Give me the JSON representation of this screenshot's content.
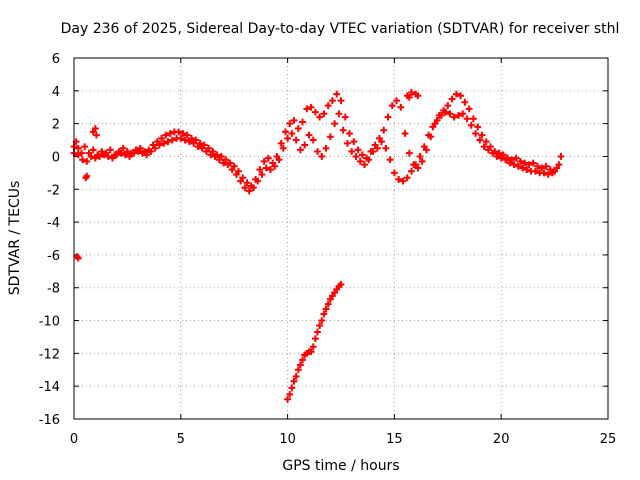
{
  "chart_data": {
    "type": "scatter",
    "title": "Day 236 of 2025, Sidereal Day-to-day VTEC variation (SDTVAR) for receiver sthl",
    "xlabel": "GPS time / hours",
    "ylabel": "SDTVAR / TECUs",
    "xlim": [
      0,
      25
    ],
    "ylim": [
      -16,
      6
    ],
    "xticks": [
      "0",
      "5",
      "10",
      "15",
      "20",
      "25"
    ],
    "yticks": [
      "-16",
      "-14",
      "-12",
      "-10",
      "-8",
      "-6",
      "-4",
      "-2",
      "0",
      "2",
      "4",
      "6"
    ],
    "grid": true,
    "marker": "+",
    "color": "#ff0000",
    "series": [
      {
        "name": "main-trace-a",
        "points": [
          [
            0.0,
            0.6
          ],
          [
            0.1,
            0.9
          ],
          [
            0.2,
            0.5
          ],
          [
            0.35,
            0.2
          ],
          [
            0.5,
            0.6
          ],
          [
            0.7,
            0.2
          ],
          [
            0.9,
            0.4
          ],
          [
            1.1,
            0.1
          ],
          [
            1.3,
            0.3
          ],
          [
            1.5,
            0.2
          ],
          [
            1.7,
            0.4
          ],
          [
            1.9,
            0.1
          ],
          [
            2.1,
            0.3
          ],
          [
            2.3,
            0.5
          ],
          [
            2.5,
            0.3
          ],
          [
            2.7,
            0.2
          ],
          [
            2.9,
            0.4
          ],
          [
            3.1,
            0.5
          ],
          [
            3.3,
            0.3
          ],
          [
            3.5,
            0.4
          ],
          [
            3.7,
            0.7
          ],
          [
            3.9,
            0.9
          ],
          [
            4.1,
            1.1
          ],
          [
            4.3,
            1.3
          ],
          [
            4.5,
            1.4
          ],
          [
            4.7,
            1.5
          ],
          [
            4.9,
            1.5
          ],
          [
            5.1,
            1.4
          ],
          [
            5.3,
            1.3
          ],
          [
            5.5,
            1.1
          ],
          [
            5.7,
            1.0
          ],
          [
            5.9,
            0.8
          ],
          [
            6.1,
            0.7
          ],
          [
            6.3,
            0.5
          ],
          [
            6.5,
            0.3
          ],
          [
            6.7,
            0.1
          ],
          [
            6.9,
            0.0
          ],
          [
            7.1,
            -0.2
          ],
          [
            7.3,
            -0.4
          ],
          [
            7.5,
            -0.6
          ],
          [
            7.7,
            -0.9
          ],
          [
            7.9,
            -1.3
          ],
          [
            8.1,
            -1.6
          ],
          [
            8.3,
            -1.8
          ],
          [
            8.5,
            -1.4
          ],
          [
            8.7,
            -0.8
          ],
          [
            8.9,
            -0.3
          ],
          [
            9.1,
            -0.1
          ],
          [
            9.3,
            -0.4
          ],
          [
            9.5,
            0.0
          ],
          [
            9.7,
            0.8
          ],
          [
            9.9,
            1.5
          ],
          [
            10.1,
            2.0
          ],
          [
            10.3,
            2.2
          ],
          [
            10.5,
            1.7
          ],
          [
            10.7,
            2.1
          ],
          [
            10.9,
            2.9
          ],
          [
            11.1,
            3.0
          ],
          [
            11.3,
            2.7
          ],
          [
            11.5,
            2.4
          ],
          [
            11.7,
            2.6
          ],
          [
            11.9,
            3.1
          ],
          [
            12.1,
            3.4
          ],
          [
            12.3,
            3.8
          ],
          [
            12.5,
            3.4
          ],
          [
            12.7,
            2.4
          ],
          [
            12.9,
            1.4
          ],
          [
            13.1,
            0.9
          ],
          [
            13.3,
            0.4
          ],
          [
            13.5,
            0.1
          ],
          [
            13.7,
            -0.1
          ],
          [
            13.9,
            0.3
          ],
          [
            14.1,
            0.7
          ],
          [
            14.3,
            1.1
          ],
          [
            14.5,
            1.6
          ],
          [
            14.7,
            2.4
          ],
          [
            14.9,
            3.1
          ],
          [
            15.1,
            3.4
          ],
          [
            15.3,
            3.0
          ],
          [
            15.5,
            1.4
          ],
          [
            15.7,
            0.2
          ],
          [
            15.9,
            -0.5
          ],
          [
            16.1,
            -0.7
          ],
          [
            16.3,
            -0.3
          ],
          [
            16.5,
            0.4
          ],
          [
            16.7,
            1.2
          ],
          [
            16.9,
            2.0
          ],
          [
            17.1,
            2.5
          ],
          [
            17.3,
            2.8
          ],
          [
            17.5,
            3.1
          ],
          [
            17.7,
            3.5
          ],
          [
            17.9,
            3.8
          ],
          [
            18.1,
            3.7
          ],
          [
            18.3,
            3.3
          ],
          [
            18.5,
            2.9
          ],
          [
            18.7,
            2.3
          ],
          [
            18.9,
            1.8
          ],
          [
            19.1,
            1.3
          ],
          [
            19.3,
            0.9
          ],
          [
            19.5,
            0.6
          ],
          [
            19.7,
            0.3
          ],
          [
            19.9,
            0.2
          ],
          [
            20.1,
            0.1
          ],
          [
            20.3,
            -0.1
          ],
          [
            20.5,
            -0.2
          ],
          [
            20.7,
            -0.1
          ],
          [
            20.9,
            -0.3
          ],
          [
            21.1,
            -0.4
          ],
          [
            21.3,
            -0.5
          ],
          [
            21.5,
            -0.4
          ],
          [
            21.7,
            -0.6
          ],
          [
            21.9,
            -0.7
          ],
          [
            22.1,
            -0.6
          ],
          [
            22.3,
            -0.8
          ],
          [
            22.5,
            -0.9
          ],
          [
            22.7,
            -0.5
          ],
          [
            22.8,
            0.0
          ]
        ]
      },
      {
        "name": "main-trace-b",
        "points": [
          [
            0.0,
            0.2
          ],
          [
            0.2,
            0.1
          ],
          [
            0.4,
            -0.2
          ],
          [
            0.6,
            -0.3
          ],
          [
            0.8,
            0.0
          ],
          [
            1.0,
            -0.1
          ],
          [
            1.2,
            0.0
          ],
          [
            1.4,
            0.1
          ],
          [
            1.6,
            0.0
          ],
          [
            1.8,
            -0.1
          ],
          [
            2.0,
            0.1
          ],
          [
            2.2,
            0.2
          ],
          [
            2.4,
            0.1
          ],
          [
            2.6,
            0.0
          ],
          [
            2.8,
            0.2
          ],
          [
            3.0,
            0.3
          ],
          [
            3.2,
            0.2
          ],
          [
            3.4,
            0.1
          ],
          [
            3.6,
            0.3
          ],
          [
            3.8,
            0.5
          ],
          [
            4.0,
            0.7
          ],
          [
            4.2,
            0.8
          ],
          [
            4.4,
            0.9
          ],
          [
            4.6,
            1.0
          ],
          [
            4.8,
            1.1
          ],
          [
            5.0,
            1.1
          ],
          [
            5.2,
            1.0
          ],
          [
            5.4,
            0.9
          ],
          [
            5.6,
            0.8
          ],
          [
            5.8,
            0.6
          ],
          [
            6.0,
            0.5
          ],
          [
            6.2,
            0.3
          ],
          [
            6.4,
            0.1
          ],
          [
            6.6,
            0.0
          ],
          [
            6.8,
            -0.2
          ],
          [
            7.0,
            -0.4
          ],
          [
            7.2,
            -0.5
          ],
          [
            7.4,
            -0.8
          ],
          [
            7.6,
            -1.1
          ],
          [
            7.8,
            -1.5
          ],
          [
            8.0,
            -1.9
          ],
          [
            8.2,
            -2.1
          ],
          [
            8.4,
            -1.9
          ],
          [
            8.6,
            -1.5
          ],
          [
            8.8,
            -1.1
          ],
          [
            9.0,
            -0.7
          ],
          [
            9.2,
            -0.8
          ],
          [
            9.4,
            -0.6
          ],
          [
            9.6,
            -0.2
          ],
          [
            9.8,
            0.5
          ],
          [
            10.0,
            1.1
          ],
          [
            10.2,
            1.4
          ],
          [
            10.4,
            1.0
          ],
          [
            10.6,
            0.4
          ],
          [
            10.8,
            0.7
          ],
          [
            11.0,
            1.3
          ],
          [
            11.2,
            1.0
          ],
          [
            11.4,
            0.3
          ],
          [
            11.6,
            0.0
          ],
          [
            11.8,
            0.5
          ],
          [
            12.0,
            1.2
          ],
          [
            12.2,
            2.0
          ],
          [
            12.4,
            2.6
          ],
          [
            12.6,
            1.6
          ],
          [
            12.8,
            0.8
          ],
          [
            13.0,
            0.3
          ],
          [
            13.2,
            0.0
          ],
          [
            13.4,
            -0.3
          ],
          [
            13.6,
            -0.5
          ],
          [
            13.8,
            -0.2
          ],
          [
            14.0,
            0.3
          ],
          [
            14.2,
            0.5
          ],
          [
            14.4,
            0.9
          ],
          [
            14.6,
            0.5
          ],
          [
            14.8,
            -0.2
          ],
          [
            15.0,
            -1.0
          ],
          [
            15.2,
            -1.4
          ],
          [
            15.4,
            -1.5
          ],
          [
            15.6,
            -1.3
          ],
          [
            15.8,
            -0.9
          ],
          [
            16.0,
            -0.5
          ],
          [
            16.2,
            0.0
          ],
          [
            16.4,
            0.6
          ],
          [
            16.6,
            1.3
          ],
          [
            16.8,
            1.8
          ],
          [
            17.0,
            2.2
          ],
          [
            17.2,
            2.5
          ],
          [
            17.4,
            2.7
          ],
          [
            17.6,
            2.6
          ],
          [
            17.8,
            2.4
          ],
          [
            18.0,
            2.5
          ],
          [
            18.2,
            2.6
          ],
          [
            18.4,
            2.3
          ],
          [
            18.6,
            1.9
          ],
          [
            18.8,
            1.4
          ],
          [
            19.0,
            1.0
          ],
          [
            19.2,
            0.6
          ],
          [
            19.4,
            0.4
          ],
          [
            19.6,
            0.2
          ],
          [
            19.8,
            0.0
          ],
          [
            20.0,
            -0.1
          ],
          [
            20.2,
            -0.2
          ],
          [
            20.4,
            -0.4
          ],
          [
            20.6,
            -0.5
          ],
          [
            20.8,
            -0.6
          ],
          [
            21.0,
            -0.7
          ],
          [
            21.2,
            -0.8
          ],
          [
            21.4,
            -0.9
          ],
          [
            21.6,
            -0.9
          ],
          [
            21.8,
            -1.0
          ],
          [
            22.0,
            -1.0
          ],
          [
            22.2,
            -1.1
          ],
          [
            22.4,
            -1.0
          ],
          [
            22.6,
            -0.7
          ]
        ]
      },
      {
        "name": "early-scatter",
        "points": [
          [
            0.55,
            -1.3
          ],
          [
            0.6,
            -1.2
          ],
          [
            0.9,
            1.5
          ],
          [
            1.0,
            1.7
          ],
          [
            1.05,
            1.3
          ],
          [
            0.15,
            -6.1
          ],
          [
            0.2,
            -6.2
          ],
          [
            15.6,
            3.7
          ],
          [
            15.7,
            3.6
          ],
          [
            15.8,
            3.9
          ],
          [
            16.0,
            3.8
          ],
          [
            16.1,
            3.7
          ]
        ]
      },
      {
        "name": "dropout-trace",
        "points": [
          [
            10.0,
            -14.8
          ],
          [
            10.1,
            -14.5
          ],
          [
            10.2,
            -14.1
          ],
          [
            10.3,
            -13.7
          ],
          [
            10.4,
            -13.4
          ],
          [
            10.5,
            -13.0
          ],
          [
            10.6,
            -12.7
          ],
          [
            10.7,
            -12.4
          ],
          [
            10.8,
            -12.1
          ],
          [
            10.9,
            -12.0
          ],
          [
            11.0,
            -11.9
          ],
          [
            11.1,
            -11.9
          ],
          [
            11.2,
            -11.6
          ],
          [
            11.3,
            -11.1
          ],
          [
            11.4,
            -10.7
          ],
          [
            11.5,
            -10.3
          ],
          [
            11.6,
            -10.0
          ],
          [
            11.7,
            -9.6
          ],
          [
            11.8,
            -9.3
          ],
          [
            11.9,
            -9.0
          ],
          [
            12.0,
            -8.7
          ],
          [
            12.1,
            -8.5
          ],
          [
            12.2,
            -8.3
          ],
          [
            12.3,
            -8.1
          ],
          [
            12.4,
            -7.9
          ],
          [
            12.5,
            -7.8
          ]
        ]
      }
    ]
  }
}
